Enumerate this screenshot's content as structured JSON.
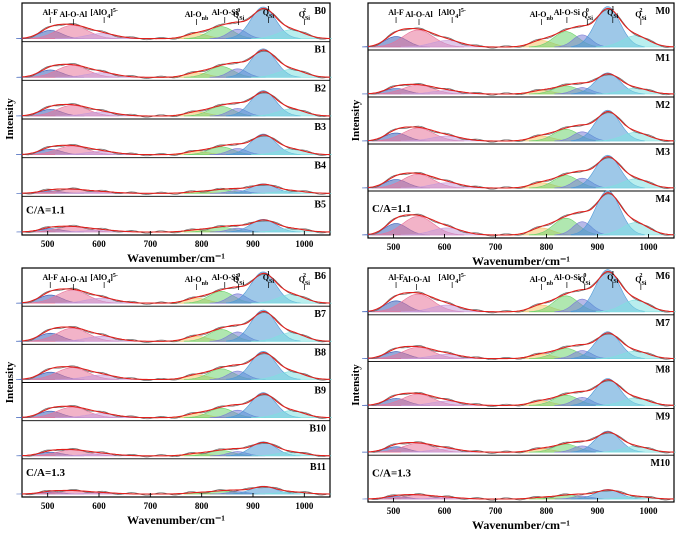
{
  "figure": {
    "ylabel": "Intensity",
    "xlabel": "Wavenumber/cm⁻¹",
    "ticks": [
      "500",
      "600",
      "700",
      "800",
      "900",
      "1000"
    ],
    "colors": {
      "envelope": "#e0201c",
      "measured": "#6a6a6a",
      "AlF": "#3a5fb8",
      "AlOAl": "#e8749a",
      "AlO4": "#c79ad8",
      "AlOnb": "#f4c46a",
      "AlOSi": "#6fd36f",
      "Q0": "#7b7fd6",
      "Q1": "#4f9ad6",
      "Q2": "#7fe0e0"
    }
  },
  "chart_data": [
    {
      "type": "stacked-deconvoluted-spectra",
      "panel": "top-left",
      "ratio_label": "C/A=1.1",
      "xlim": [
        450,
        1050
      ],
      "samples": [
        "B0",
        "B1",
        "B2",
        "B3",
        "B4",
        "B5"
      ],
      "peak_labels": [
        {
          "text": "Al-F",
          "x": 505
        },
        {
          "text": "Al-O-Al",
          "x": 550
        },
        {
          "text": "[AlO4]5-",
          "x": 610
        },
        {
          "text": "Al-Onb",
          "x": 790
        },
        {
          "text": "Al-O-Si",
          "x": 845
        },
        {
          "text": "QSi0",
          "x": 872
        },
        {
          "text": "QSi1",
          "x": 930
        },
        {
          "text": "QSi2",
          "x": 1000
        }
      ],
      "intensity_scale": [
        1.0,
        0.9,
        0.8,
        0.65,
        0.3,
        0.4
      ]
    },
    {
      "type": "stacked-deconvoluted-spectra",
      "panel": "top-right",
      "ratio_label": "C/A=1.1",
      "xlim": [
        450,
        1050
      ],
      "samples": [
        "M0",
        "M1",
        "M2",
        "M3",
        "M4"
      ],
      "peak_labels": [
        {
          "text": "Al-F",
          "x": 505
        },
        {
          "text": "Al-O-Al",
          "x": 550
        },
        {
          "text": "[AlO4]5-",
          "x": 615
        },
        {
          "text": "Al-Onb",
          "x": 790
        },
        {
          "text": "Al-O-Si",
          "x": 840
        },
        {
          "text": "QSi0",
          "x": 880
        },
        {
          "text": "QSi1",
          "x": 930
        },
        {
          "text": "QSi2",
          "x": 985
        }
      ],
      "intensity_scale": [
        1.05,
        0.55,
        0.8,
        0.85,
        1.15
      ]
    },
    {
      "type": "stacked-deconvoluted-spectra",
      "panel": "bottom-left",
      "ratio_label": "C/A=1.3",
      "xlim": [
        450,
        1050
      ],
      "samples": [
        "B6",
        "B7",
        "B8",
        "B9",
        "B10",
        "B11"
      ],
      "peak_labels": [
        {
          "text": "Al-F",
          "x": 505
        },
        {
          "text": "Al-O-Al",
          "x": 550
        },
        {
          "text": "[AlO4]5-",
          "x": 610
        },
        {
          "text": "Al-Onb",
          "x": 790
        },
        {
          "text": "Al-O-Si",
          "x": 845
        },
        {
          "text": "QSi0",
          "x": 872
        },
        {
          "text": "QSi1",
          "x": 930
        },
        {
          "text": "QSi2",
          "x": 1000
        }
      ],
      "intensity_scale": [
        1.0,
        1.0,
        0.9,
        0.8,
        0.45,
        0.25
      ]
    },
    {
      "type": "stacked-deconvoluted-spectra",
      "panel": "bottom-right",
      "ratio_label": "C/A=1.3",
      "xlim": [
        450,
        1050
      ],
      "samples": [
        "M6",
        "M7",
        "M8",
        "M9",
        "M10"
      ],
      "peak_labels": [
        {
          "text": "Al-F",
          "x": 505
        },
        {
          "text": "Al-O-Al",
          "x": 545
        },
        {
          "text": "[AlO4]5-",
          "x": 615
        },
        {
          "text": "Al-Onb",
          "x": 790
        },
        {
          "text": "Al-O-Si",
          "x": 840
        },
        {
          "text": "QSi0",
          "x": 875
        },
        {
          "text": "QSi1",
          "x": 930
        },
        {
          "text": "QSi2",
          "x": 985
        }
      ],
      "intensity_scale": [
        1.1,
        0.7,
        0.7,
        0.55,
        0.25
      ]
    }
  ]
}
